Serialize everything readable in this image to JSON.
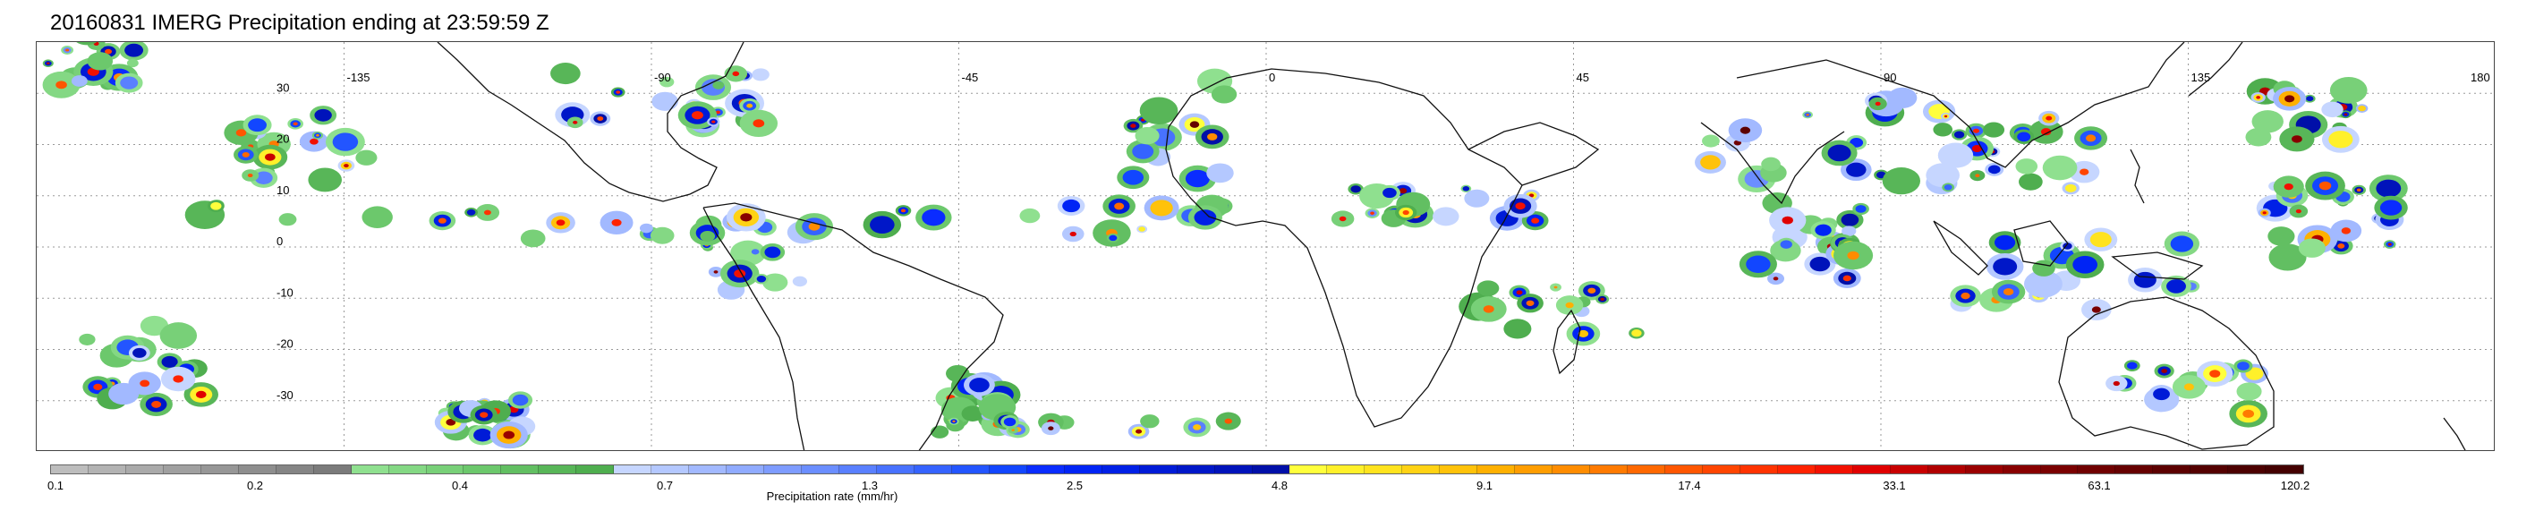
{
  "title": "20160831 IMERG Precipitation ending at 23:59:59 Z",
  "map": {
    "lat_labels": [
      "30",
      "20",
      "10",
      "0",
      "-10",
      "-20",
      "-30"
    ],
    "lon_labels": [
      "-135",
      "-90",
      "-45",
      "0",
      "45",
      "90",
      "135",
      "180"
    ],
    "lon_range": [
      -180,
      180
    ],
    "lat_range": [
      -40,
      40
    ],
    "grid": "dotted"
  },
  "colorbar": {
    "label": "Precipitation rate (mm/hr)",
    "tick_labels": [
      "0.1",
      "0.2",
      "0.4",
      "0.7",
      "1.3",
      "2.5",
      "4.8",
      "9.1",
      "17.4",
      "33.1",
      "63.1",
      "120.2"
    ],
    "colors": [
      "#bdbdbd",
      "#b3b3b3",
      "#aaaaaa",
      "#a0a0a0",
      "#979797",
      "#8e8e8e",
      "#858585",
      "#7b7b7b",
      "#8fe08f",
      "#84d884",
      "#78d078",
      "#6cc86c",
      "#62bf62",
      "#58b658",
      "#4fae4f",
      "#c6d6ff",
      "#b4c8ff",
      "#a2b9ff",
      "#90abff",
      "#7e9cff",
      "#6b8eff",
      "#5a80ff",
      "#4872ff",
      "#3563ff",
      "#2355ff",
      "#1246ff",
      "#0a2cff",
      "#0024f5",
      "#0020e6",
      "#001bd7",
      "#0017c8",
      "#0013ba",
      "#000fa8",
      "#ffff3c",
      "#fff02a",
      "#ffe31e",
      "#ffd214",
      "#ffc20a",
      "#ffb000",
      "#ff9d00",
      "#ff8c00",
      "#ff7a00",
      "#ff6800",
      "#ff5600",
      "#ff4500",
      "#ff3300",
      "#ff2200",
      "#f21000",
      "#e00000",
      "#c80000",
      "#b00000",
      "#9a0000",
      "#880000",
      "#7a0000",
      "#700000",
      "#660000",
      "#5c0000",
      "#540000",
      "#4c0000",
      "#440000"
    ]
  }
}
